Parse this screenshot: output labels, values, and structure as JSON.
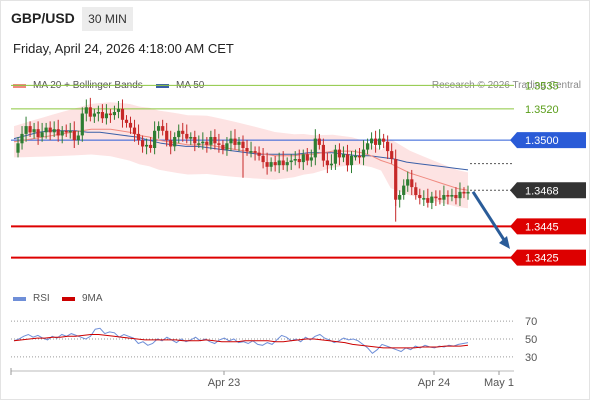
{
  "header": {
    "pair": "GBP/USD",
    "timeframe": "30 MIN",
    "datetime": "Friday, April 24, 2026 4:18:00 AM CET"
  },
  "legend": {
    "ma20": "MA 20 + Bollinger Bands",
    "ma50": "MA 50",
    "rsi": "RSI",
    "ma9": "9MA"
  },
  "credit": "Research © 2026 Trading Central",
  "colors": {
    "ma20": "#f08a80",
    "ma50": "#3a5fa8",
    "bollinger_fill": "#fde3e3",
    "bull": "#2e7d32",
    "bear": "#c62828",
    "resistance": "#8cc63f",
    "support": "#dd0000",
    "pivot": "#2a5bd7",
    "arrow": "#2a5c99",
    "rsi_line": "#6f8fd8",
    "rsi_ma": "#cc0000"
  },
  "chart_data": {
    "type": "candlestick",
    "symbol": "GBP/USD",
    "interval": "30 MIN",
    "ylim": [
      1.3405,
      1.3555
    ],
    "x_ticks": [
      "Apr 23",
      "Apr 24",
      "May 1"
    ],
    "levels": [
      {
        "value": 1.3535,
        "label": "1.3535",
        "kind": "resistance"
      },
      {
        "value": 1.352,
        "label": "1.3520",
        "kind": "resistance"
      },
      {
        "value": 1.35,
        "label": "1.3500",
        "kind": "pivot"
      },
      {
        "value": 1.3468,
        "label": "1.3468",
        "kind": "last"
      },
      {
        "value": 1.3445,
        "label": "1.3445",
        "kind": "support"
      },
      {
        "value": 1.3425,
        "label": "1.3425",
        "kind": "support"
      }
    ],
    "forecast": {
      "from": 1.3467,
      "to": 1.3428,
      "direction": "down"
    },
    "price_path": [
      1.3492,
      1.3498,
      1.3504,
      1.3509,
      1.3505,
      1.3507,
      1.3502,
      1.3505,
      1.3508,
      1.3505,
      1.3507,
      1.3503,
      1.3506,
      1.3505,
      1.3506,
      1.35,
      1.3503,
      1.3517,
      1.3521,
      1.3515,
      1.3517,
      1.3518,
      1.3514,
      1.3517,
      1.3516,
      1.3518,
      1.352,
      1.3513,
      1.3511,
      1.3508,
      1.3504,
      1.35,
      1.3496,
      1.3497,
      1.3495,
      1.3506,
      1.3509,
      1.3506,
      1.35,
      1.3496,
      1.3502,
      1.3506,
      1.3504,
      1.3501,
      1.3502,
      1.3498,
      1.3498,
      1.3499,
      1.3497,
      1.3502,
      1.3498,
      1.3497,
      1.3494,
      1.3498,
      1.3501,
      1.3497,
      1.3499,
      1.3495,
      1.3493,
      1.3493,
      1.3492,
      1.349,
      1.3486,
      1.3483,
      1.3486,
      1.3484,
      1.3487,
      1.3484,
      1.3486,
      1.3487,
      1.3488,
      1.3486,
      1.3491,
      1.3487,
      1.3489,
      1.3501,
      1.3497,
      1.3487,
      1.3484,
      1.3485,
      1.3494,
      1.3489,
      1.3491,
      1.3484,
      1.349,
      1.349,
      1.3489,
      1.3494,
      1.3498,
      1.3501,
      1.3497,
      1.3501,
      1.3499,
      1.3493,
      1.3488,
      1.3462,
      1.3465,
      1.3471,
      1.3475,
      1.347,
      1.3465,
      1.3463,
      1.3463,
      1.346,
      1.3464,
      1.3463,
      1.3462,
      1.3465,
      1.3464,
      1.3465,
      1.3463,
      1.3467,
      1.3466,
      1.3467
    ],
    "ma20": [
      1.3499,
      1.35,
      1.3501,
      1.3502,
      1.3503,
      1.3504,
      1.3505,
      1.3506,
      1.3507,
      1.3507,
      1.3507,
      1.3506,
      1.3505,
      1.3503,
      1.3502,
      1.35,
      1.3499,
      1.3498,
      1.3497,
      1.3497,
      1.3497,
      1.3496,
      1.3495,
      1.3494,
      1.3493,
      1.3492,
      1.3491,
      1.349,
      1.349,
      1.349,
      1.3491,
      1.3491,
      1.3492,
      1.3493,
      1.3493,
      1.3493,
      1.3492,
      1.349,
      1.3487,
      1.3485,
      1.3482,
      1.3479,
      1.3477,
      1.3475,
      1.3473,
      1.3471,
      1.3469,
      1.3468
    ],
    "ma50": [
      1.3501,
      1.3503,
      1.3505,
      1.3506,
      1.3506,
      1.3506,
      1.3505,
      1.3505,
      1.3504,
      1.3503,
      1.3502,
      1.35,
      1.3498,
      1.3497,
      1.3496,
      1.3496,
      1.3495,
      1.3494,
      1.3493,
      1.3492,
      1.3491,
      1.3491,
      1.3491,
      1.3491,
      1.3492,
      1.3492,
      1.3492,
      1.3491,
      1.349,
      1.349,
      1.3489,
      1.3488,
      1.3486,
      1.3485,
      1.3484,
      1.3483,
      1.3482,
      1.3481
    ],
    "rsi": {
      "ticks": [
        70,
        50,
        30
      ],
      "ylim": [
        22,
        78
      ],
      "values": [
        48,
        50,
        53,
        55,
        52,
        54,
        51,
        49,
        53,
        51,
        55,
        53,
        56,
        54,
        52,
        50,
        53,
        61,
        62,
        56,
        58,
        57,
        52,
        55,
        53,
        51,
        45,
        47,
        43,
        45,
        50,
        48,
        52,
        49,
        46,
        50,
        47,
        49,
        52,
        48,
        50,
        47,
        45,
        49,
        51,
        48,
        50,
        46,
        47,
        45,
        48,
        44,
        43,
        46,
        44,
        49,
        54,
        52,
        48,
        50,
        47,
        52,
        49,
        53,
        55,
        51,
        49,
        46,
        48,
        51,
        49,
        50,
        48,
        44,
        40,
        34,
        38,
        44,
        42,
        40,
        38,
        36,
        40,
        38,
        42,
        40,
        43,
        41,
        40,
        42,
        41,
        43,
        42,
        44,
        45,
        46
      ],
      "ma9": [
        48,
        49,
        50,
        51,
        51,
        52,
        52,
        53,
        53,
        54,
        55,
        55,
        54,
        53,
        52,
        51,
        50,
        49,
        49,
        49,
        49,
        49,
        48,
        48,
        48,
        49,
        48,
        47,
        47,
        47,
        48,
        48,
        48,
        48,
        47,
        47,
        48,
        49,
        50,
        50,
        49,
        48,
        47,
        46,
        44,
        43,
        42,
        41,
        40,
        40,
        40,
        40,
        40,
        41,
        41,
        41,
        42,
        42,
        42,
        43
      ]
    }
  }
}
